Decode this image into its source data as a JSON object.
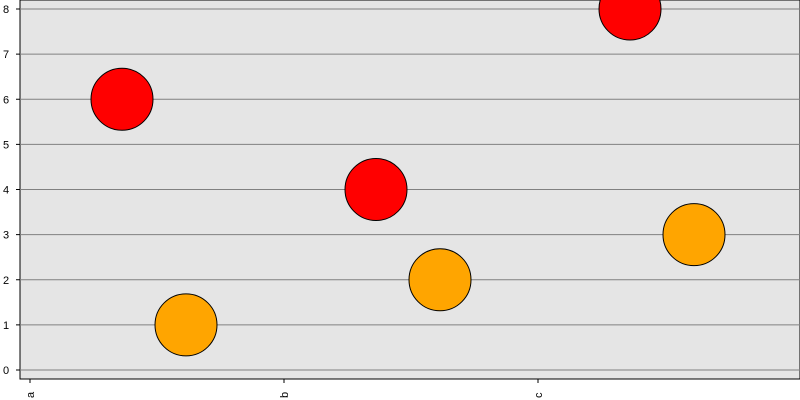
{
  "chart_data": {
    "type": "scatter",
    "categories": [
      "a",
      "b",
      "c"
    ],
    "series": [
      {
        "color": "#ff0000",
        "points": [
          {
            "category": "a",
            "value": 6
          },
          {
            "category": "b",
            "value": 4
          },
          {
            "category": "c",
            "value": 8
          }
        ]
      },
      {
        "color": "#ffa500",
        "points": [
          {
            "category": "a",
            "value": 1
          },
          {
            "category": "b",
            "value": 2
          },
          {
            "category": "c",
            "value": 3
          }
        ]
      }
    ],
    "ylim": [
      0,
      8
    ],
    "yticks": [
      0,
      1,
      2,
      3,
      4,
      5,
      6,
      7,
      8
    ],
    "title": "",
    "xlabel": "",
    "ylabel": "",
    "grid": "horizontal",
    "legend": "none",
    "plot_background": "#e5e5e5"
  }
}
